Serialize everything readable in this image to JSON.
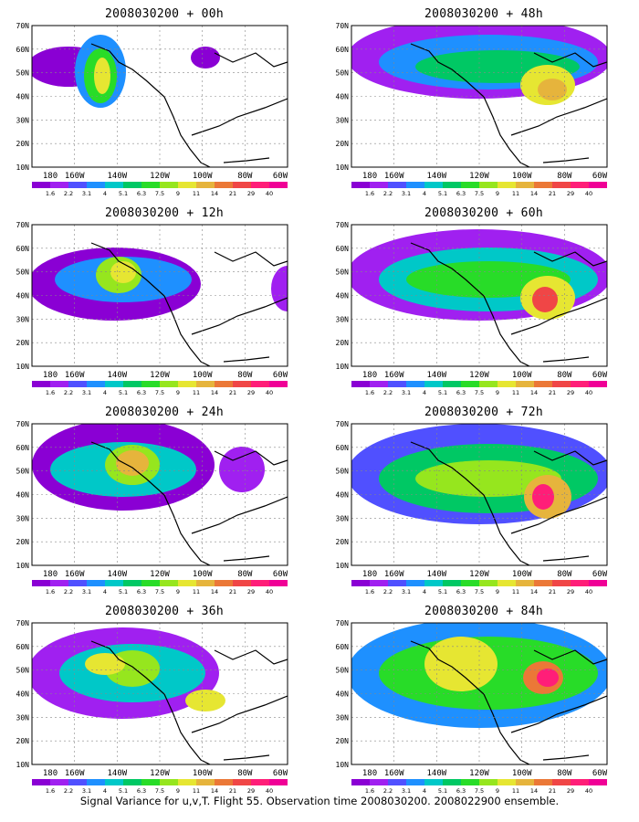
{
  "panels": [
    {
      "title": "2008030200  + 00h"
    },
    {
      "title": "2008030200  + 48h"
    },
    {
      "title": "2008030200  + 12h"
    },
    {
      "title": "2008030200  + 60h"
    },
    {
      "title": "2008030200  + 24h"
    },
    {
      "title": "2008030200  + 72h"
    },
    {
      "title": "2008030200  + 36h"
    },
    {
      "title": "2008030200  + 84h"
    }
  ],
  "axes": {
    "lat_labels": [
      "70N",
      "60N",
      "50N",
      "40N",
      "30N",
      "20N",
      "10N"
    ],
    "lon_labels": [
      "180",
      "160W",
      "140W",
      "120W",
      "100W",
      "80W",
      "60W"
    ]
  },
  "legend": {
    "labels": [
      "1.6",
      "2.2",
      "3.1",
      "4",
      "5.1",
      "6.3",
      "7.5",
      "9",
      "11",
      "14",
      "21",
      "29",
      "40"
    ],
    "colors": [
      "#8a00d4",
      "#a020f0",
      "#5050ff",
      "#1e90ff",
      "#00c8c8",
      "#00c864",
      "#28dc28",
      "#96e61e",
      "#e6e632",
      "#e6b43c",
      "#eb7837",
      "#f04646",
      "#ff1e78",
      "#f00096"
    ]
  },
  "caption": "Signal Variance for u,v,T. Flight 55. Observation time 2008030200. 2008022900 ensemble."
}
